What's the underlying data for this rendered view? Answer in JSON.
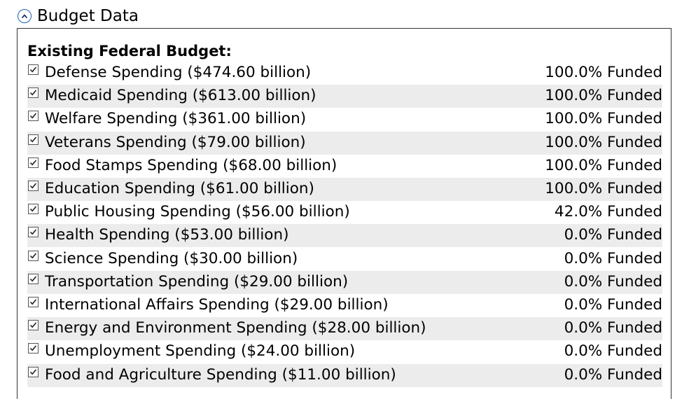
{
  "section": {
    "title": "Budget Data"
  },
  "panel": {
    "heading": "Existing Federal Budget:",
    "items": [
      {
        "label": "Defense Spending ($474.60 billion)",
        "value": "100.0% Funded",
        "checked": true
      },
      {
        "label": "Medicaid Spending ($613.00 billion)",
        "value": "100.0% Funded",
        "checked": true
      },
      {
        "label": "Welfare Spending ($361.00 billion)",
        "value": "100.0% Funded",
        "checked": true
      },
      {
        "label": "Veterans Spending ($79.00 billion)",
        "value": "100.0% Funded",
        "checked": true
      },
      {
        "label": "Food Stamps Spending ($68.00 billion)",
        "value": "100.0% Funded",
        "checked": true
      },
      {
        "label": "Education Spending ($61.00 billion)",
        "value": "100.0% Funded",
        "checked": true
      },
      {
        "label": "Public Housing Spending ($56.00 billion)",
        "value": "42.0% Funded",
        "checked": true
      },
      {
        "label": "Health Spending ($53.00 billion)",
        "value": "0.0% Funded",
        "checked": true
      },
      {
        "label": "Science Spending ($30.00 billion)",
        "value": "0.0% Funded",
        "checked": true
      },
      {
        "label": "Transportation Spending ($29.00 billion)",
        "value": "0.0% Funded",
        "checked": true
      },
      {
        "label": "International Affairs Spending ($29.00 billion)",
        "value": "0.0% Funded",
        "checked": true
      },
      {
        "label": "Energy and Environment Spending ($28.00 billion)",
        "value": "0.0% Funded",
        "checked": true
      },
      {
        "label": "Unemployment Spending ($24.00 billion)",
        "value": "0.0% Funded",
        "checked": true
      },
      {
        "label": "Food and Agriculture Spending ($11.00 billion)",
        "value": "0.0% Funded",
        "checked": true
      }
    ]
  },
  "icons": {
    "collapse": "chevron-up-icon",
    "check": "checkmark-icon"
  },
  "colors": {
    "accent": "#1f5fae",
    "row_alt": "#ececec",
    "border": "#333333"
  }
}
